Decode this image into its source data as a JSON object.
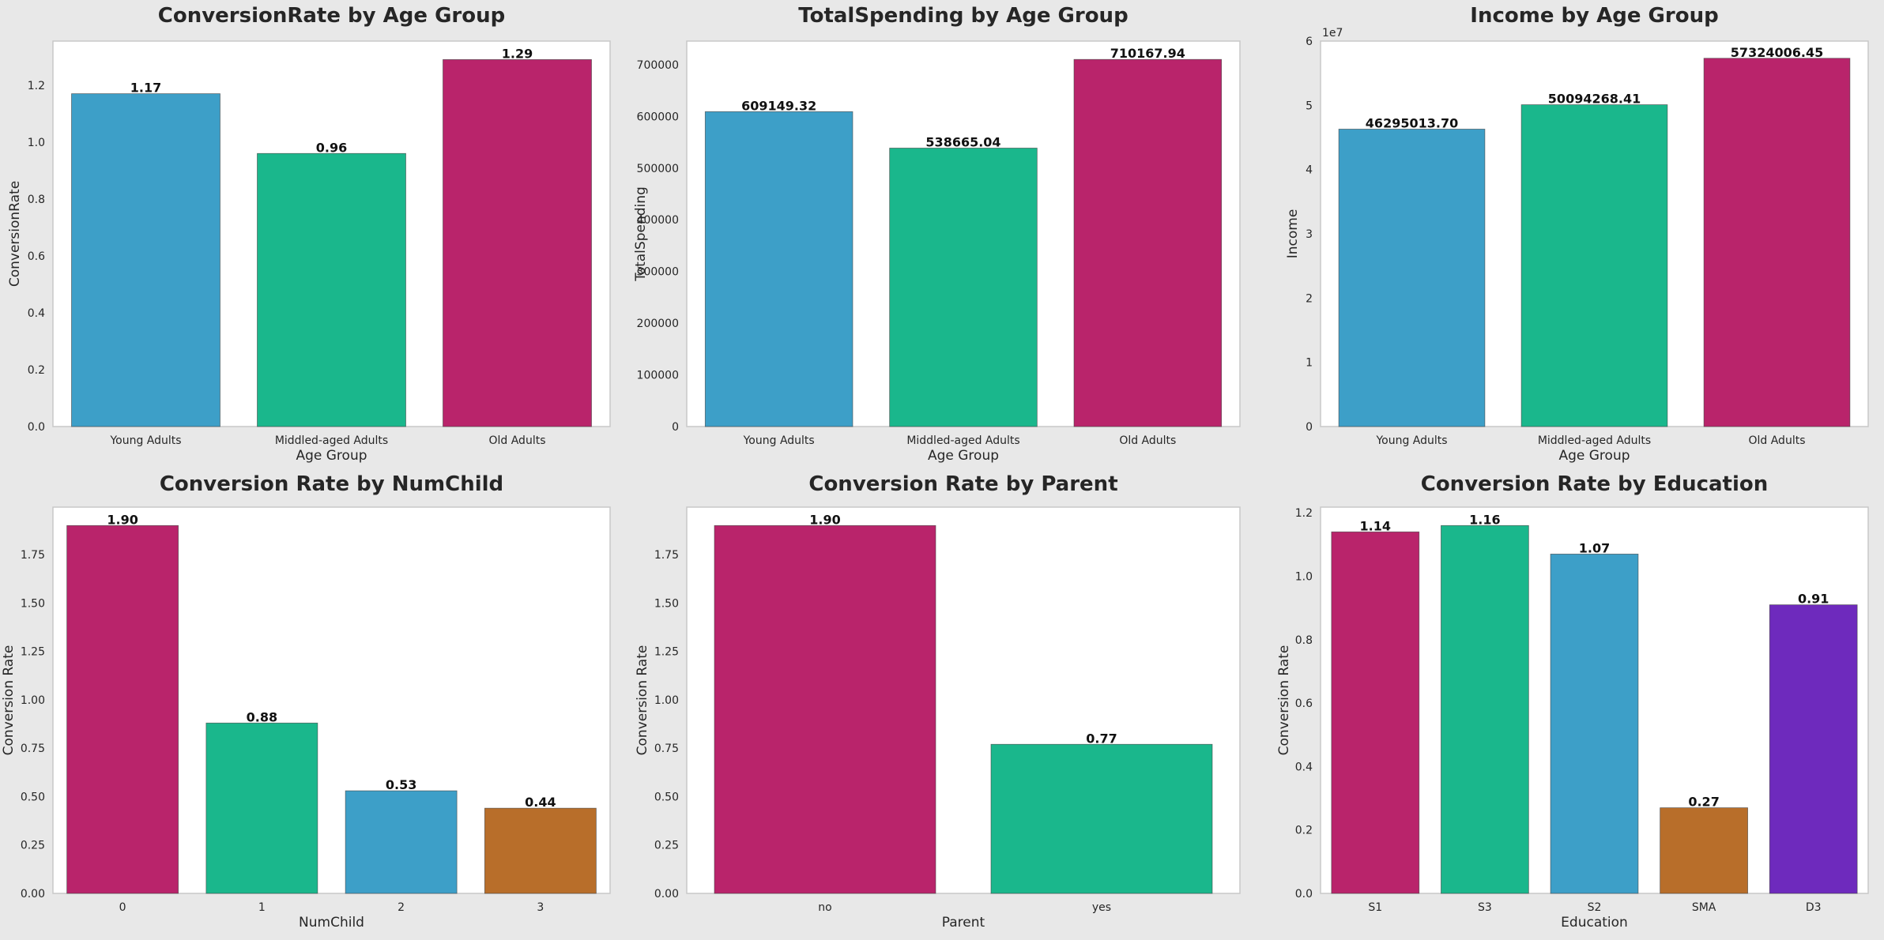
{
  "chart_data": [
    {
      "type": "bar",
      "title": "ConversionRate by Age Group",
      "xlabel": "Age Group",
      "ylabel": "ConversionRate",
      "categories": [
        "Young Adults",
        "Middled-aged Adults",
        "Old Adults"
      ],
      "values": [
        1.17,
        0.96,
        1.29
      ],
      "value_labels": [
        "1.17",
        "0.96",
        "1.29"
      ],
      "colors": [
        "#3d9fc8",
        "#1ab78c",
        "#b9246b"
      ],
      "ylim": [
        0,
        1.355
      ],
      "yticks": [
        0.0,
        0.2,
        0.4,
        0.6,
        0.8,
        1.0,
        1.2
      ],
      "ytick_labels": [
        "0.0",
        "0.2",
        "0.4",
        "0.6",
        "0.8",
        "1.0",
        "1.2"
      ],
      "grid": false
    },
    {
      "type": "bar",
      "title": "TotalSpending by Age Group",
      "xlabel": "Age Group",
      "ylabel": "TotalSpending",
      "categories": [
        "Young Adults",
        "Middled-aged Adults",
        "Old Adults"
      ],
      "values": [
        609149.32,
        538665.04,
        710167.94
      ],
      "value_labels": [
        "609149.32",
        "538665.04",
        "710167.94"
      ],
      "colors": [
        "#3d9fc8",
        "#1ab78c",
        "#b9246b"
      ],
      "ylim": [
        0,
        745676
      ],
      "yticks": [
        0,
        100000,
        200000,
        300000,
        400000,
        500000,
        600000,
        700000
      ],
      "ytick_labels": [
        "0",
        "100000",
        "200000",
        "300000",
        "400000",
        "500000",
        "600000",
        "700000"
      ],
      "grid": false
    },
    {
      "type": "bar",
      "title": "Income by Age Group",
      "xlabel": "Age Group",
      "ylabel": "Income",
      "y_offset_label": "1e7",
      "categories": [
        "Young Adults",
        "Middled-aged Adults",
        "Old Adults"
      ],
      "values": [
        46295013.7,
        50094268.41,
        57324006.45
      ],
      "value_labels": [
        "46295013.70",
        "50094268.41",
        "57324006.45"
      ],
      "colors": [
        "#3d9fc8",
        "#1ab78c",
        "#b9246b"
      ],
      "ylim": [
        0,
        60000000
      ],
      "yticks": [
        0,
        10000000,
        20000000,
        30000000,
        40000000,
        50000000,
        60000000
      ],
      "ytick_labels": [
        "0",
        "1",
        "2",
        "3",
        "4",
        "5",
        "6"
      ],
      "grid": false
    },
    {
      "type": "bar",
      "title": "Conversion Rate by NumChild",
      "xlabel": "NumChild",
      "ylabel": "Conversion Rate",
      "categories": [
        "0",
        "1",
        "2",
        "3"
      ],
      "values": [
        1.9,
        0.88,
        0.53,
        0.44
      ],
      "value_labels": [
        "1.90",
        "0.88",
        "0.53",
        "0.44"
      ],
      "colors": [
        "#b9246b",
        "#1ab78c",
        "#3d9fc8",
        "#b86e2a"
      ],
      "ylim": [
        0,
        1.995
      ],
      "yticks": [
        0.0,
        0.25,
        0.5,
        0.75,
        1.0,
        1.25,
        1.5,
        1.75
      ],
      "ytick_labels": [
        "0.00",
        "0.25",
        "0.50",
        "0.75",
        "1.00",
        "1.25",
        "1.50",
        "1.75"
      ],
      "grid": false
    },
    {
      "type": "bar",
      "title": "Conversion Rate by Parent",
      "xlabel": "Parent",
      "ylabel": "Conversion Rate",
      "categories": [
        "no",
        "yes"
      ],
      "values": [
        1.9,
        0.77
      ],
      "value_labels": [
        "1.90",
        "0.77"
      ],
      "colors": [
        "#b9246b",
        "#1ab78c"
      ],
      "ylim": [
        0,
        1.995
      ],
      "yticks": [
        0.0,
        0.25,
        0.5,
        0.75,
        1.0,
        1.25,
        1.5,
        1.75
      ],
      "ytick_labels": [
        "0.00",
        "0.25",
        "0.50",
        "0.75",
        "1.00",
        "1.25",
        "1.50",
        "1.75"
      ],
      "grid": false
    },
    {
      "type": "bar",
      "title": "Conversion Rate by Education",
      "xlabel": "Education",
      "ylabel": "Conversion Rate",
      "categories": [
        "S1",
        "S3",
        "S2",
        "SMA",
        "D3"
      ],
      "values": [
        1.14,
        1.16,
        1.07,
        0.27,
        0.91
      ],
      "value_labels": [
        "1.14",
        "1.16",
        "1.07",
        "0.27",
        "0.91"
      ],
      "colors": [
        "#b9246b",
        "#1ab78c",
        "#3d9fc8",
        "#b86e2a",
        "#6e2abd"
      ],
      "ylim": [
        0,
        1.218
      ],
      "yticks": [
        0.0,
        0.2,
        0.4,
        0.6,
        0.8,
        1.0,
        1.2
      ],
      "ytick_labels": [
        "0.0",
        "0.2",
        "0.4",
        "0.6",
        "0.8",
        "1.0",
        "1.2"
      ],
      "grid": false
    }
  ]
}
